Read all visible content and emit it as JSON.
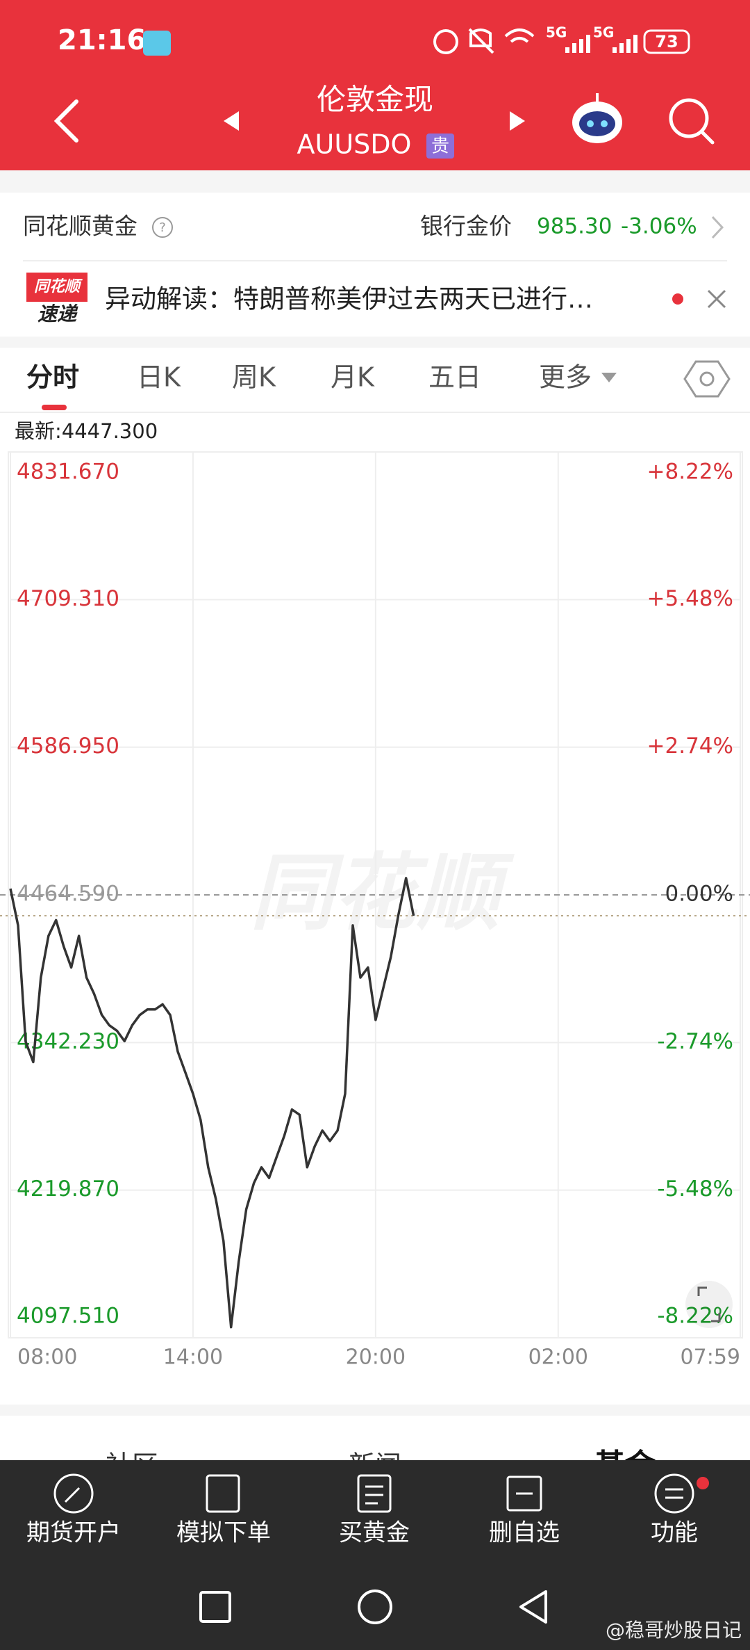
{
  "status_bar": {
    "time": "21:16",
    "network": [
      "5G",
      "5G"
    ],
    "battery": "73"
  },
  "header": {
    "title": "伦敦金现",
    "symbol": "AUUSDO",
    "badge": "贵"
  },
  "info": {
    "source": "同花顺黄金",
    "bank_price_label": "银行金价",
    "bank_price": "985.30",
    "bank_change": "-3.06%"
  },
  "news": {
    "logo": [
      "同花顺",
      "速递"
    ],
    "text": "异动解读：特朗普称美伊过去两天已进行…"
  },
  "tabs": [
    "分时",
    "日K",
    "周K",
    "月K",
    "五日",
    "更多"
  ],
  "chart_data": {
    "type": "line",
    "watermark": "同花顺",
    "latest": {
      "label": "最新:",
      "value": 4447.3,
      "value_label": "4447.300"
    },
    "x": [
      "08:00",
      "08:15",
      "08:30",
      "08:45",
      "09:00",
      "09:15",
      "09:30",
      "09:45",
      "10:00",
      "10:15",
      "10:30",
      "10:45",
      "11:00",
      "11:15",
      "11:30",
      "11:45",
      "12:00",
      "12:15",
      "12:30",
      "12:45",
      "13:00",
      "13:15",
      "13:30",
      "13:45",
      "14:00",
      "14:15",
      "14:30",
      "14:45",
      "15:00",
      "15:15",
      "15:30",
      "15:45",
      "16:00",
      "16:15",
      "16:30",
      "16:45",
      "17:00",
      "17:15",
      "17:30",
      "17:45",
      "18:00",
      "18:15",
      "18:30",
      "18:45",
      "19:00",
      "19:15",
      "19:30",
      "19:45",
      "20:00",
      "20:15",
      "20:30",
      "20:45",
      "21:00",
      "21:15"
    ],
    "values": [
      4469.8,
      4439.3,
      4343.0,
      4326.0,
      4396.0,
      4430.6,
      4443.7,
      4421.9,
      4404.4,
      4430.6,
      4396.0,
      4382.6,
      4365.2,
      4356.5,
      4352.0,
      4343.4,
      4356.5,
      4365.0,
      4369.6,
      4369.6,
      4373.9,
      4365.0,
      4334.7,
      4317.3,
      4299.8,
      4278.0,
      4238.8,
      4212.6,
      4177.7,
      4106.3,
      4160.3,
      4204.0,
      4225.7,
      4238.8,
      4230.0,
      4247.5,
      4265.0,
      4286.7,
      4282.4,
      4238.8,
      4256.2,
      4269.3,
      4260.6,
      4269.3,
      4299.8,
      4439.3,
      4396.0,
      4404.4,
      4360.9,
      4387.0,
      4413.2,
      4448.0,
      4478.5,
      4447.3
    ],
    "color": "#333333",
    "xlim": [
      "08:00",
      "07:59"
    ],
    "xticks": [
      "08:00",
      "14:00",
      "20:00",
      "02:00",
      "07:59"
    ],
    "ylim": [
      4097.51,
      4831.67
    ],
    "yticks": [
      {
        "value": 4831.67,
        "label": "4831.670"
      },
      {
        "value": 4709.31,
        "label": "4709.310"
      },
      {
        "value": 4586.95,
        "label": "4586.950"
      },
      {
        "value": 4464.59,
        "label": "4464.590"
      },
      {
        "value": 4342.23,
        "label": "4342.230"
      },
      {
        "value": 4219.87,
        "label": "4219.870"
      },
      {
        "value": 4097.51,
        "label": "4097.510"
      }
    ],
    "y2lim": [
      -8.22,
      8.22
    ],
    "y2ticks": [
      {
        "value": 8.22,
        "label": "+8.22%"
      },
      {
        "value": 5.48,
        "label": "+5.48%"
      },
      {
        "value": 2.74,
        "label": "+2.74%"
      },
      {
        "value": 0,
        "label": "0.00%"
      },
      {
        "value": -2.74,
        "label": "-2.74%"
      },
      {
        "value": -5.48,
        "label": "-5.48%"
      },
      {
        "value": -8.22,
        "label": "-8.22%"
      }
    ],
    "grid": true,
    "up_color": "#d8343a",
    "down_color": "#1a9a2a"
  },
  "content_tabs": [
    "社区",
    "新闻",
    "基金"
  ],
  "toolbar": [
    "期货开户",
    "模拟下单",
    "买黄金",
    "删自选",
    "功能"
  ],
  "watermark": "@稳哥炒股日记"
}
